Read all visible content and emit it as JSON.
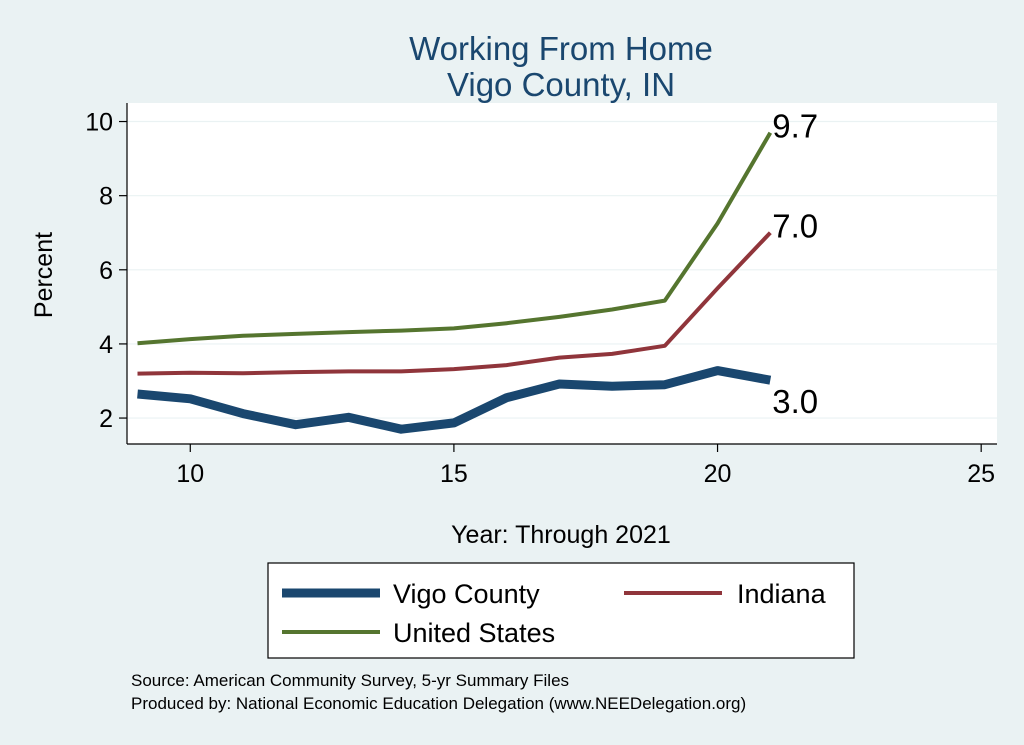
{
  "chart_data": {
    "type": "line",
    "title": [
      "Working From Home",
      "Vigo County, IN"
    ],
    "xlabel": "Year: Through 2021",
    "ylabel": "Percent",
    "xlim": [
      8.8,
      25.3
    ],
    "ylim": [
      1.3,
      10.5
    ],
    "xticks": [
      10,
      15,
      20,
      25
    ],
    "yticks": [
      2,
      4,
      6,
      8,
      10
    ],
    "grid": "horizontal",
    "legend_position": "bottom",
    "series": [
      {
        "name": "Vigo County",
        "color": "#1a476f",
        "line_weight": "thick",
        "x": [
          9,
          10,
          11,
          12,
          13,
          14,
          15,
          16,
          17,
          18,
          19,
          20,
          21
        ],
        "values": [
          2.65,
          2.52,
          2.12,
          1.82,
          2.02,
          1.7,
          1.87,
          2.55,
          2.92,
          2.86,
          2.9,
          3.28,
          3.02
        ],
        "end_label": "3.0"
      },
      {
        "name": "Indiana",
        "color": "#90353b",
        "line_weight": "medium",
        "x": [
          9,
          10,
          11,
          12,
          13,
          14,
          15,
          16,
          17,
          18,
          19,
          20,
          21
        ],
        "values": [
          3.2,
          3.22,
          3.21,
          3.24,
          3.26,
          3.26,
          3.32,
          3.43,
          3.63,
          3.73,
          3.95,
          5.5,
          7.0
        ],
        "end_label": "7.0"
      },
      {
        "name": "United States",
        "color": "#55752f",
        "line_weight": "medium",
        "x": [
          9,
          10,
          11,
          12,
          13,
          14,
          15,
          16,
          17,
          18,
          19,
          20,
          21
        ],
        "values": [
          4.02,
          4.13,
          4.22,
          4.27,
          4.32,
          4.36,
          4.42,
          4.56,
          4.73,
          4.93,
          5.17,
          7.25,
          9.7
        ],
        "end_label": "9.7"
      }
    ],
    "notes": [
      "Source: American Community Survey, 5-yr Summary Files",
      "Produced by: National Economic Education Delegation (www.NEEDelegation.org)"
    ]
  },
  "colors": {
    "outer_background": "#eaf2f3",
    "plot_background": "#ffffff",
    "title": "#1a476f",
    "grid": "#eaf2f3",
    "axis": "#000000"
  }
}
